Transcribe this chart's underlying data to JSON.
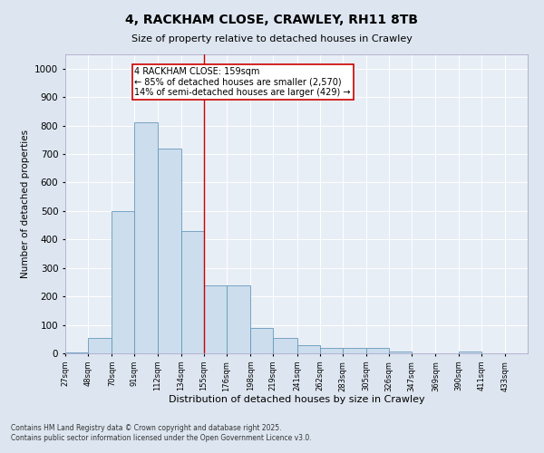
{
  "title": "4, RACKHAM CLOSE, CRAWLEY, RH11 8TB",
  "subtitle": "Size of property relative to detached houses in Crawley",
  "xlabel": "Distribution of detached houses by size in Crawley",
  "ylabel": "Number of detached properties",
  "bar_color": "#ccdded",
  "bar_edge_color": "#6699bb",
  "background_color": "#e8eef6",
  "grid_color": "#ffffff",
  "vline_color": "#cc0000",
  "vline_x": 155,
  "annotation_title": "4 RACKHAM CLOSE: 159sqm",
  "annotation_line1": "← 85% of detached houses are smaller (2,570)",
  "annotation_line2": "14% of semi-detached houses are larger (429) →",
  "bins": [
    27,
    48,
    70,
    91,
    112,
    134,
    155,
    176,
    198,
    219,
    241,
    262,
    283,
    305,
    326,
    347,
    369,
    390,
    411,
    433,
    454
  ],
  "counts": [
    3,
    55,
    500,
    810,
    720,
    430,
    240,
    240,
    90,
    55,
    30,
    20,
    20,
    20,
    5,
    0,
    0,
    5,
    0,
    0
  ],
  "ylim": [
    0,
    1050
  ],
  "yticks": [
    0,
    100,
    200,
    300,
    400,
    500,
    600,
    700,
    800,
    900,
    1000
  ],
  "footer_line1": "Contains HM Land Registry data © Crown copyright and database right 2025.",
  "footer_line2": "Contains public sector information licensed under the Open Government Licence v3.0.",
  "fig_width": 6.0,
  "fig_height": 5.0,
  "dpi": 100
}
